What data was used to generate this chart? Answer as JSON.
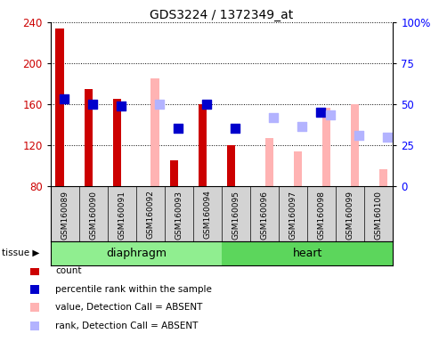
{
  "title": "GDS3224 / 1372349_at",
  "samples": [
    "GSM160089",
    "GSM160090",
    "GSM160091",
    "GSM160092",
    "GSM160093",
    "GSM160094",
    "GSM160095",
    "GSM160096",
    "GSM160097",
    "GSM160098",
    "GSM160099",
    "GSM160100"
  ],
  "diaphragm_indices": [
    0,
    1,
    2,
    3,
    4,
    5
  ],
  "heart_indices": [
    6,
    7,
    8,
    9,
    10,
    11
  ],
  "diaphragm_label": "diaphragm",
  "heart_label": "heart",
  "diaphragm_color": "#90ee90",
  "heart_color": "#5cd65c",
  "count_values": [
    234,
    175,
    165,
    null,
    105,
    160,
    120,
    null,
    null,
    null,
    null,
    null
  ],
  "percentile_rank_values": [
    165,
    160,
    158,
    null,
    137,
    160,
    137,
    null,
    null,
    152,
    null,
    null
  ],
  "absent_value_values": [
    null,
    null,
    null,
    185,
    null,
    null,
    null,
    127,
    114,
    157,
    160,
    97
  ],
  "absent_rank_values": [
    null,
    null,
    null,
    160,
    null,
    null,
    null,
    147,
    138,
    150,
    130,
    128
  ],
  "ylim_left": [
    80,
    240
  ],
  "ylim_right": [
    0,
    100
  ],
  "yticks_left": [
    80,
    120,
    160,
    200,
    240
  ],
  "yticks_right": [
    0,
    25,
    50,
    75,
    100
  ],
  "ytick_labels_right": [
    "0",
    "25",
    "50",
    "75",
    "100%"
  ],
  "count_color": "#cc0000",
  "percentile_color": "#0000cc",
  "absent_value_color": "#ffb3b3",
  "absent_rank_color": "#b3b3ff",
  "bar_width": 0.3,
  "dot_size": 55,
  "sample_bg_color": "#d3d3d3",
  "plot_bg": "#ffffff",
  "tissue_label": "tissue",
  "legend_items": [
    {
      "color": "#cc0000",
      "label": "count"
    },
    {
      "color": "#0000cc",
      "label": "percentile rank within the sample"
    },
    {
      "color": "#ffb3b3",
      "label": "value, Detection Call = ABSENT"
    },
    {
      "color": "#b3b3ff",
      "label": "rank, Detection Call = ABSENT"
    }
  ]
}
